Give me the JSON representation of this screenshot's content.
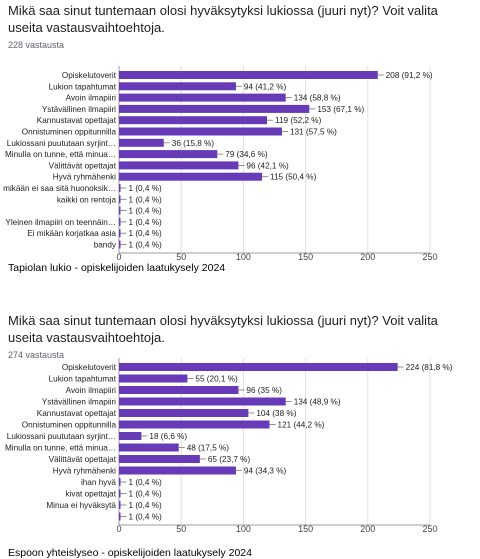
{
  "accent_color": "#673ab7",
  "charts": [
    {
      "title": "Mikä saa sinut tuntemaan olosi hyväksytyksi lukiossa (juuri nyt)? Voit valita useita vastausvaihtoehtoja.",
      "responses": "228 vastausta",
      "caption": "Tapiolan lukio - opiskelijoiden laatukysely 2024"
    },
    {
      "title": "Mikä saa sinut tuntemaan olosi hyväksytyksi lukiossa (juuri nyt)? Voit valita useita vastausvaihtoehtoja.",
      "responses": "274 vastausta",
      "caption": "Espoon yhteislyseo - opiskelijoiden laatukysely 2024"
    }
  ],
  "chart_data": [
    {
      "type": "bar",
      "orientation": "horizontal",
      "title": "Mikä saa sinut tuntemaan olosi hyväksytyksi lukiossa (juuri nyt)? Voit valita useita vastausvaihtoehtoja.",
      "categories": [
        "Opiskelutoverit",
        "Lukion tapahtumat",
        "Avoin ilmapiiri",
        "Ystävällinen ilmapiiri",
        "Kannustavat opettajat",
        "Onnistuminen oppitunnilla",
        "Lukiossani puututaan syrjint…",
        "Minulla on tunne, että minua…",
        "Välittävät opettajat",
        "Hyvä ryhmähenki",
        "mikään ei saa sitä huonoksik…",
        "kaikki on rentoja",
        "",
        "Yleinen ilmapiiri on teennäin…",
        "Ei mikään korjatkaa asia",
        "bandy"
      ],
      "values": [
        208,
        94,
        134,
        153,
        119,
        131,
        36,
        79,
        96,
        115,
        1,
        1,
        1,
        1,
        1,
        1
      ],
      "value_labels": [
        "208 (91,2 %)",
        "94 (41,2 %)",
        "134 (58,8 %)",
        "153 (67,1 %)",
        "119 (52,2 %)",
        "131 (57,5 %)",
        "36 (15,8 %)",
        "79 (34,6 %)",
        "96 (42,1 %)",
        "115 (50,4 %)",
        "1 (0,4 %)",
        "1 (0,4 %)",
        "1 (0,4 %)",
        "1 (0,4 %)",
        "1 (0,4 %)",
        "1 (0,4 %)"
      ],
      "xticks": [
        "0",
        "50",
        "100",
        "150",
        "200",
        "250"
      ],
      "xlim": [
        0,
        250
      ],
      "grid": true,
      "color": "#673ab7"
    },
    {
      "type": "bar",
      "orientation": "horizontal",
      "title": "Mikä saa sinut tuntemaan olosi hyväksytyksi lukiossa (juuri nyt)? Voit valita useita vastausvaihtoehtoja.",
      "categories": [
        "Opiskelutoverit",
        "Lukion tapahtumat",
        "Avoin ilmapiiri",
        "Ystävällinen ilmapiiri",
        "Kannustavat opettajat",
        "Onnistuminen oppitunnilla",
        "Lukiossani puututaan syrjint…",
        "Minulla on tunne, että minua…",
        "Välittävät opettajat",
        "Hyvä ryhmähenki",
        "ihan hyvä",
        "kivat opettajat",
        "Minua ei hyväksytä",
        ""
      ],
      "values": [
        224,
        55,
        96,
        134,
        104,
        121,
        18,
        48,
        65,
        94,
        1,
        1,
        1,
        1
      ],
      "value_labels": [
        "224 (81,8 %)",
        "55 (20,1 %)",
        "96 (35 %)",
        "134 (48,9 %)",
        "104 (38 %)",
        "121 (44,2 %)",
        "18 (6,6 %)",
        "48 (17,5 %)",
        "65 (23,7 %)",
        "94 (34,3 %)",
        "1 (0,4 %)",
        "1 (0,4 %)",
        "1 (0,4 %)",
        "1 (0,4 %)"
      ],
      "xticks": [
        "0",
        "50",
        "100",
        "150",
        "200",
        "250"
      ],
      "xlim": [
        0,
        250
      ],
      "grid": true,
      "color": "#673ab7"
    }
  ]
}
